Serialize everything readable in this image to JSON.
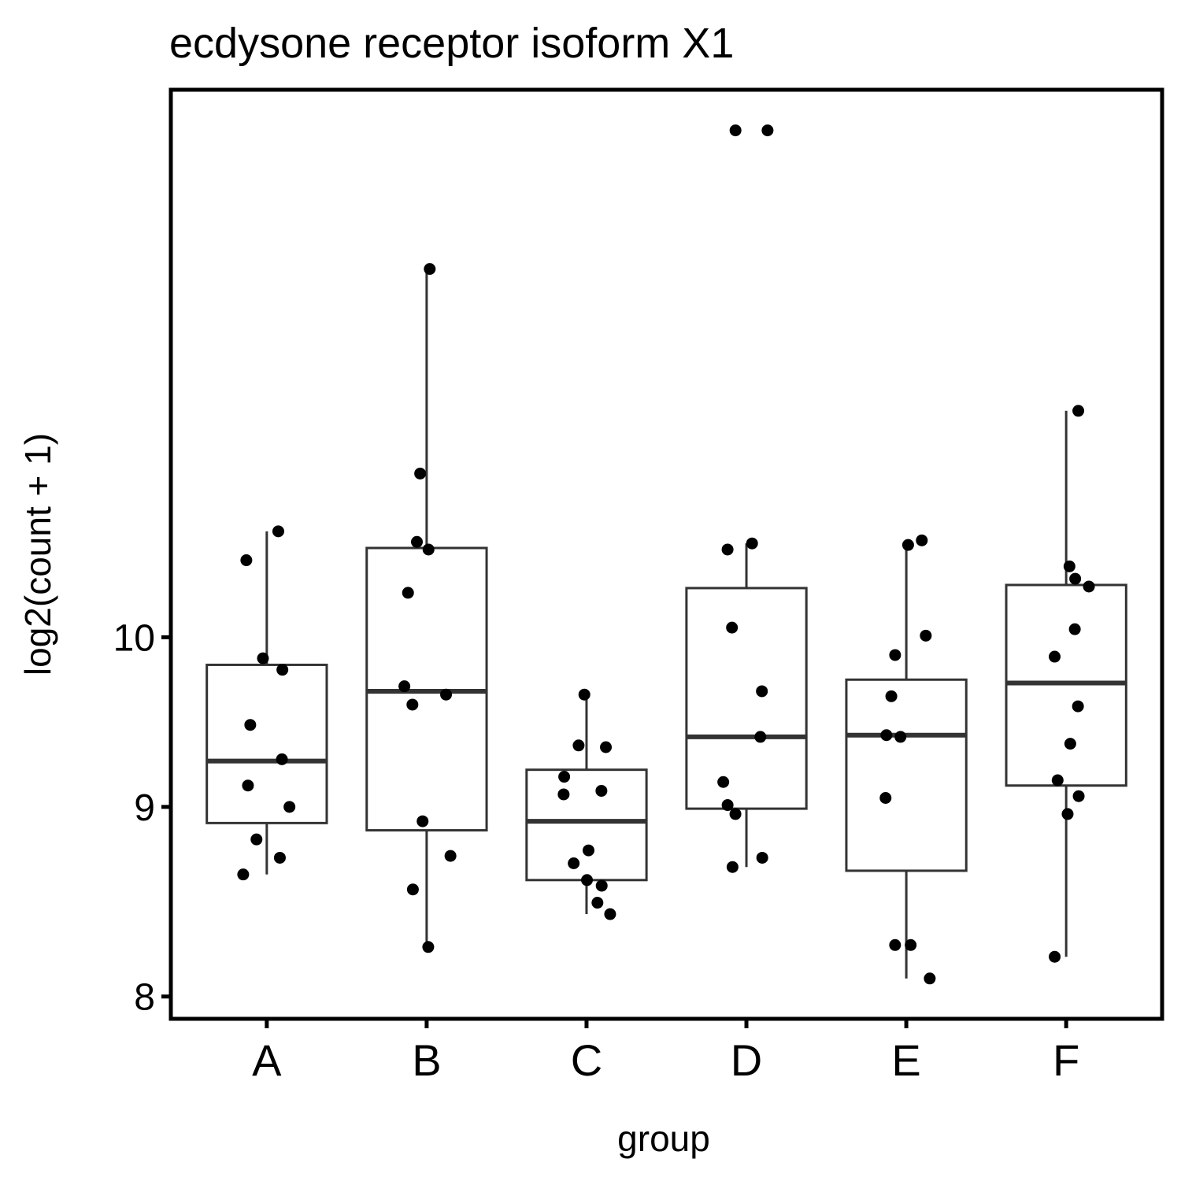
{
  "chart_data": {
    "type": "box",
    "title": "ecdysone receptor isoform X1",
    "x_label": "group",
    "y_label": "log2(count + 1)",
    "y_scale": "log",
    "ylim": [
      7.89,
      14.05
    ],
    "yticks": [
      8,
      9,
      10
    ],
    "categories": [
      "A",
      "B",
      "C",
      "D",
      "E",
      "F"
    ],
    "box_color": "#333333",
    "point_color": "#000000",
    "boxes": [
      {
        "low": 8.63,
        "q1": 8.91,
        "median": 9.26,
        "q3": 9.83,
        "high": 10.68,
        "points": [
          10.68,
          10.49,
          9.87,
          9.8,
          9.47,
          9.27,
          9.12,
          9.0,
          8.82,
          8.72,
          8.63
        ]
      },
      {
        "low": 8.25,
        "q1": 8.87,
        "median": 9.67,
        "q3": 10.57,
        "high": 12.57,
        "points": [
          12.57,
          11.07,
          10.61,
          10.56,
          10.28,
          9.7,
          9.65,
          9.59,
          8.92,
          8.73,
          8.55,
          8.25
        ]
      },
      {
        "low": 8.42,
        "q1": 8.6,
        "median": 8.92,
        "q3": 9.21,
        "high": 9.65,
        "points": [
          9.65,
          9.35,
          9.34,
          9.17,
          9.09,
          9.07,
          8.76,
          8.69,
          8.6,
          8.57,
          8.48,
          8.42
        ]
      },
      {
        "low": 8.67,
        "q1": 8.99,
        "median": 9.4,
        "q3": 10.31,
        "high": 10.6,
        "points": [
          13.7,
          13.7,
          10.6,
          10.56,
          10.06,
          9.67,
          9.4,
          9.14,
          9.01,
          8.96,
          8.72,
          8.67
        ]
      },
      {
        "low": 8.09,
        "q1": 8.65,
        "median": 9.41,
        "q3": 9.74,
        "high": 10.62,
        "points": [
          10.62,
          10.59,
          10.01,
          9.89,
          9.64,
          9.41,
          9.4,
          9.05,
          8.26,
          8.26,
          8.09
        ]
      },
      {
        "low": 8.2,
        "q1": 9.12,
        "median": 9.72,
        "q3": 10.33,
        "high": 11.51,
        "points": [
          11.51,
          10.45,
          10.37,
          10.32,
          10.05,
          9.88,
          9.58,
          9.36,
          9.15,
          9.06,
          8.96,
          8.2
        ]
      }
    ]
  }
}
